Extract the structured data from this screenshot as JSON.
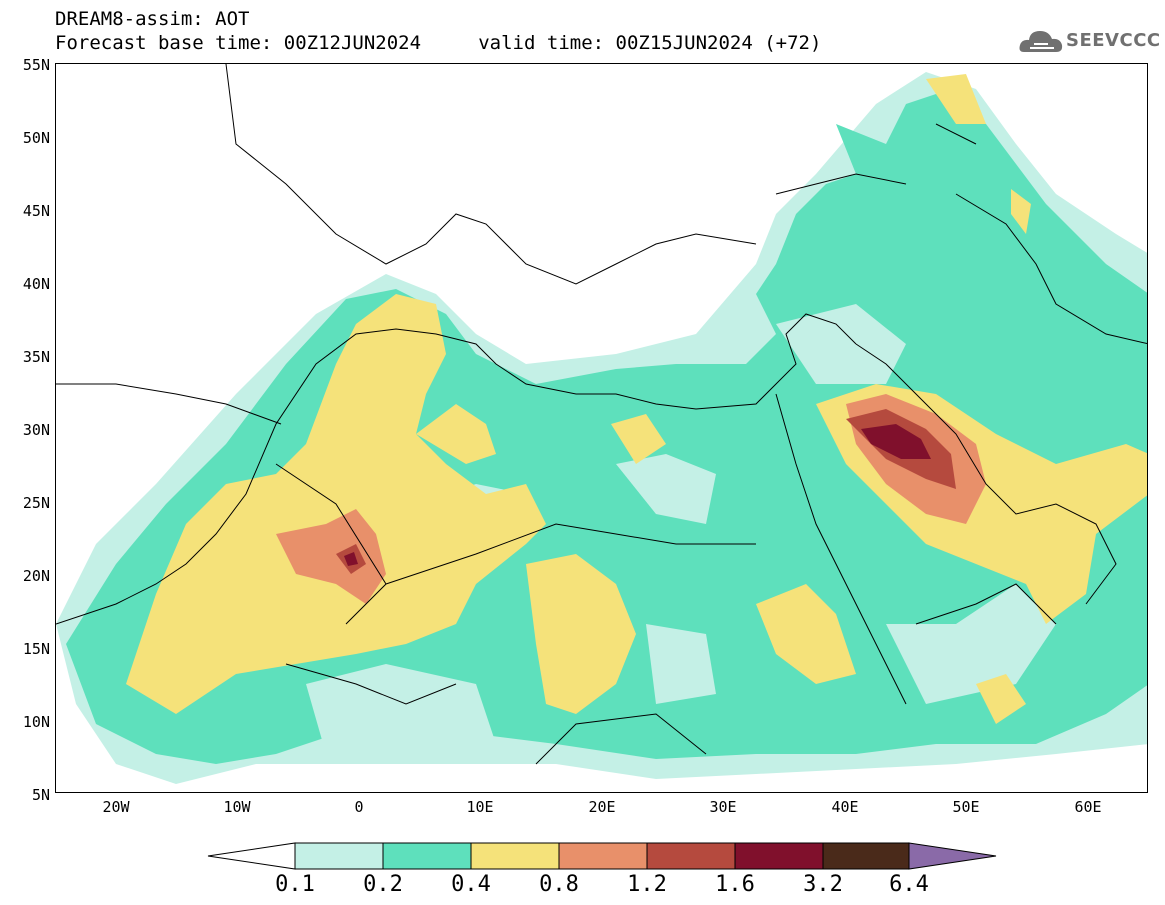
{
  "header": {
    "line1": "DREAM8-assim: AOT",
    "line2": "Forecast base time: 00Z12JUN2024     valid time: 00Z15JUN2024 (+72)"
  },
  "logo": {
    "text": "SEEVCCC",
    "icon": "cloud-logo-icon",
    "color": "#707070"
  },
  "map": {
    "lat_labels": [
      "55N",
      "50N",
      "45N",
      "40N",
      "35N",
      "30N",
      "25N",
      "20N",
      "15N",
      "10N",
      "5N"
    ],
    "lon_labels": [
      "20W",
      "10W",
      "0",
      "10E",
      "20E",
      "30E",
      "40E",
      "50E",
      "60E"
    ]
  },
  "colorbar": {
    "labels": [
      "0.1",
      "0.2",
      "0.4",
      "0.8",
      "1.2",
      "1.6",
      "3.2",
      "6.4"
    ],
    "colors": [
      "#ffffff",
      "#c4f0e6",
      "#5ee0bc",
      "#f5e27a",
      "#e8906a",
      "#b54a3e",
      "#80102c",
      "#4a2a1a",
      "#8a6aa8"
    ]
  }
}
